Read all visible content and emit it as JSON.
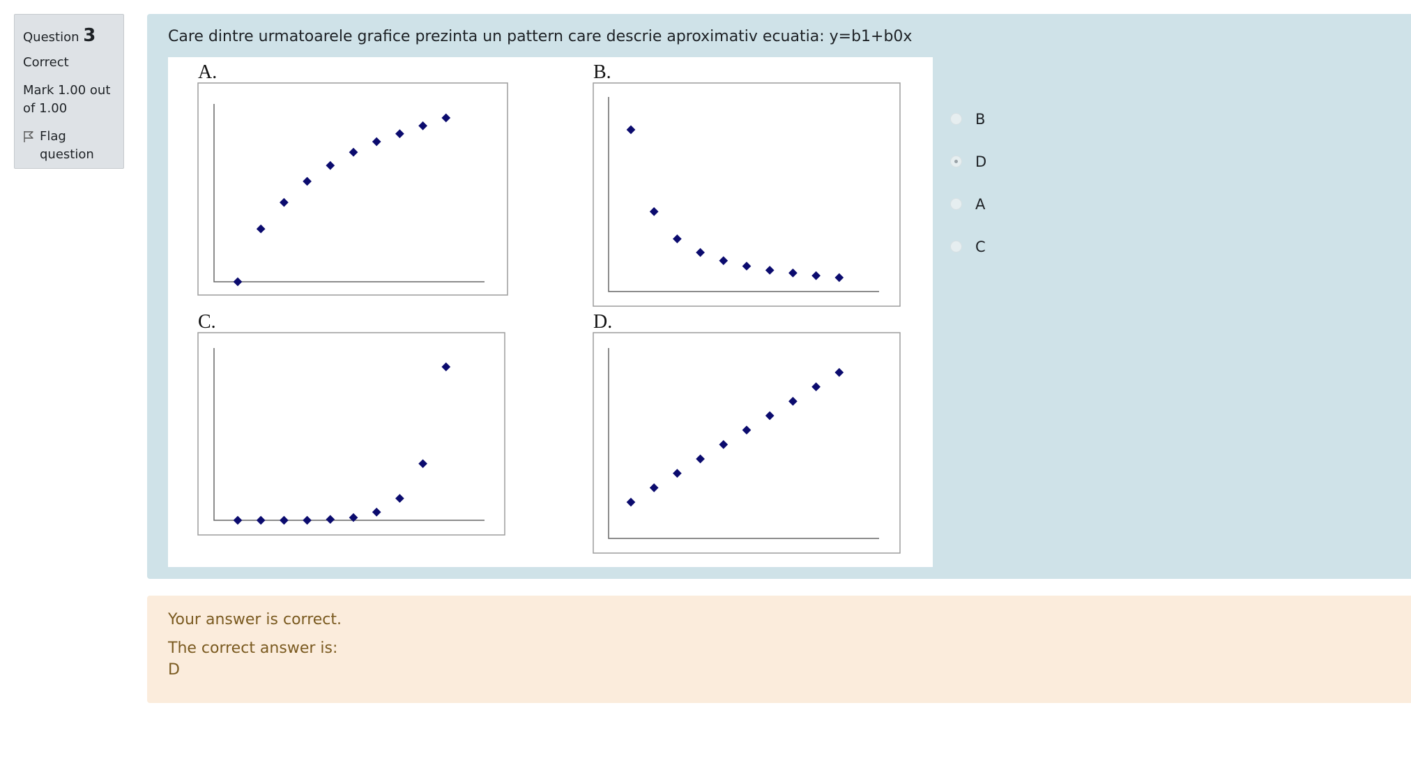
{
  "info": {
    "question_label": "Question",
    "question_number": "3",
    "state": "Correct",
    "grade": "Mark 1.00 out of 1.00",
    "flag_label": "Flag question"
  },
  "question": {
    "text": "Care dintre urmatoarele grafice prezinta un pattern care descrie aproximativ ecuatia: y=b1+b0x"
  },
  "figure": {
    "panels": [
      {
        "label": "A."
      },
      {
        "label": "B."
      },
      {
        "label": "C."
      },
      {
        "label": "D."
      }
    ],
    "point_color": "#0b0b6e"
  },
  "chart_data": [
    {
      "type": "scatter",
      "title": "A.",
      "x": [
        1,
        2,
        3,
        4,
        5,
        6,
        7,
        8,
        9,
        10
      ],
      "y": [
        0,
        2.0,
        3.0,
        3.8,
        4.4,
        4.9,
        5.3,
        5.6,
        5.9,
        6.2
      ]
    },
    {
      "type": "scatter",
      "title": "B.",
      "x": [
        1,
        2,
        3,
        4,
        5,
        6,
        7,
        8,
        9,
        10
      ],
      "y": [
        6.0,
        3.0,
        2.0,
        1.5,
        1.2,
        1.0,
        0.85,
        0.75,
        0.65,
        0.58
      ]
    },
    {
      "type": "scatter",
      "title": "C.",
      "x": [
        1,
        2,
        3,
        4,
        5,
        6,
        7,
        8,
        9,
        10
      ],
      "y": [
        0,
        0,
        0,
        0,
        0.05,
        0.15,
        0.45,
        1.2,
        3.1,
        8.4
      ]
    },
    {
      "type": "scatter",
      "title": "D.",
      "x": [
        1,
        2,
        3,
        4,
        5,
        6,
        7,
        8,
        9,
        10
      ],
      "y": [
        1,
        2,
        3,
        4,
        5,
        6,
        7,
        8,
        9,
        10
      ]
    }
  ],
  "answers": [
    {
      "label": "B",
      "checked": false
    },
    {
      "label": "D",
      "checked": true
    },
    {
      "label": "A",
      "checked": false
    },
    {
      "label": "C",
      "checked": false
    }
  ],
  "feedback": {
    "result": "Your answer is correct.",
    "correct_intro": "The correct answer is:",
    "correct_value": "D"
  }
}
